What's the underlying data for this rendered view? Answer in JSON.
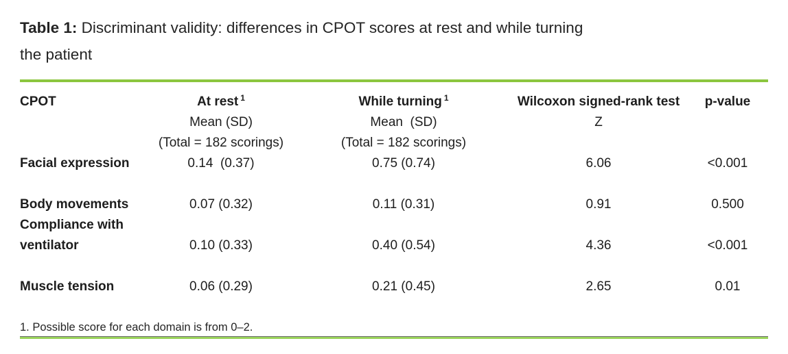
{
  "caption": {
    "label": "Table 1:",
    "line1": " Discriminant validity: differences in CPOT scores at rest and while turning",
    "line2": "the patient"
  },
  "accent_color": "#8CC63F",
  "table": {
    "header": {
      "cpot": "CPOT",
      "at_rest": {
        "label": "At rest",
        "sup": "1",
        "sub": "Mean (SD)",
        "total": "(Total = 182 scorings)"
      },
      "while_turning": {
        "label": "While turning",
        "sup": "1",
        "sub": "Mean  (SD)",
        "total": "(Total = 182 scorings)"
      },
      "wilcoxon": {
        "label": "Wilcoxon signed-rank test",
        "sub": "Z"
      },
      "p_value": {
        "label": "p-value"
      }
    },
    "rows": [
      {
        "label": "Facial expression",
        "at_rest": "0.14  (0.37)",
        "while_turning": "0.75 (0.74)",
        "z": "6.06",
        "p": "<0.001"
      },
      {
        "label": "Body movements",
        "at_rest": "0.07 (0.32)",
        "while_turning": "0.11 (0.31)",
        "z": "0.91",
        "p": "0.500"
      },
      {
        "label_line1": "Compliance with",
        "label_line2": "ventilator",
        "at_rest": "0.10 (0.33)",
        "while_turning": "0.40 (0.54)",
        "z": "4.36",
        "p": "<0.001"
      },
      {
        "label": "Muscle tension",
        "at_rest": "0.06 (0.29)",
        "while_turning": "0.21 (0.45)",
        "z": "2.65",
        "p": "0.01"
      }
    ]
  },
  "footnote": {
    "text": "1. Possible score for each domain is from 0–2."
  }
}
